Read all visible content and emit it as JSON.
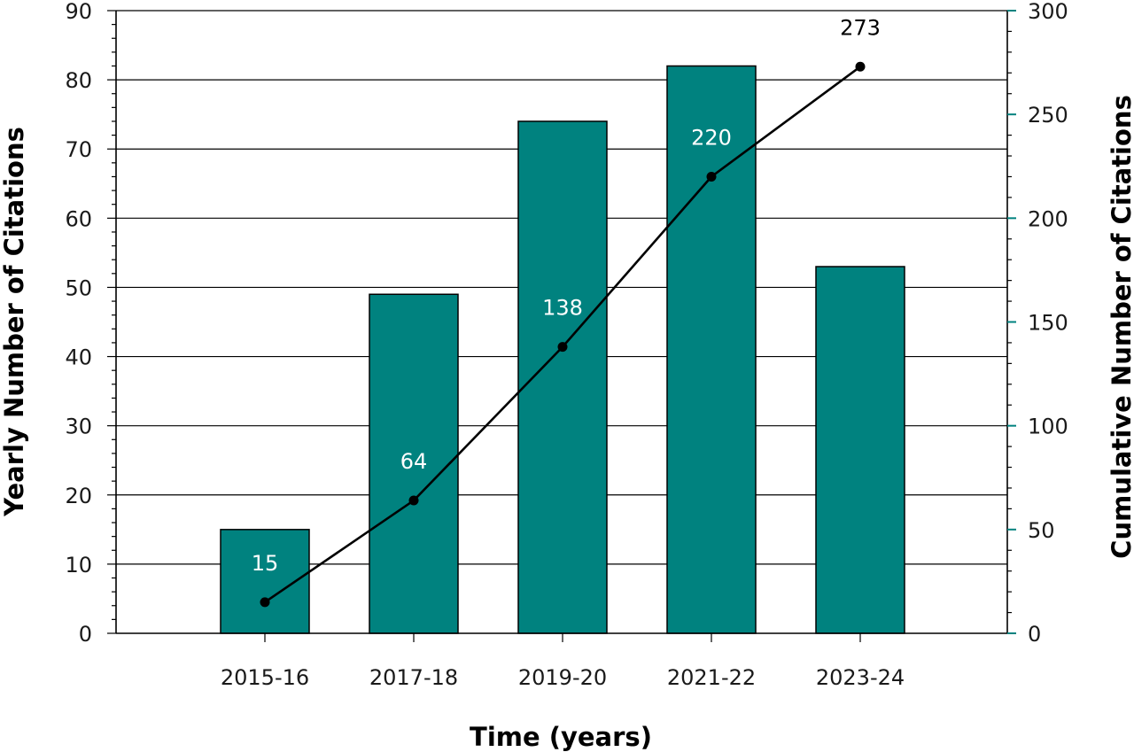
{
  "chart_data": {
    "type": "bar",
    "categories": [
      "2015-16",
      "2017-18",
      "2019-20",
      "2021-22",
      "2023-24"
    ],
    "series": [
      {
        "type": "bar",
        "axis": "left",
        "values": [
          15,
          49,
          74,
          82,
          53
        ]
      },
      {
        "type": "line",
        "axis": "right",
        "values": [
          15,
          64,
          138,
          220,
          273
        ],
        "data_labels": [
          "15",
          "64",
          "138",
          "220",
          "273"
        ]
      }
    ],
    "xlabel": "Time (years)",
    "ylabel": "Yearly Number of Citations",
    "y2label": "Cumulative Number of Citations",
    "ylim": [
      0,
      90
    ],
    "y2lim": [
      0,
      300
    ],
    "yticks": [
      "0",
      "10",
      "20",
      "30",
      "40",
      "50",
      "60",
      "70",
      "80",
      "90"
    ],
    "y2ticks": [
      "0",
      "50",
      "100",
      "150",
      "200",
      "250",
      "300"
    ],
    "grid": true,
    "colors": {
      "bar": "#00827f",
      "line": "#000000",
      "right_axis": "#00827f"
    }
  }
}
